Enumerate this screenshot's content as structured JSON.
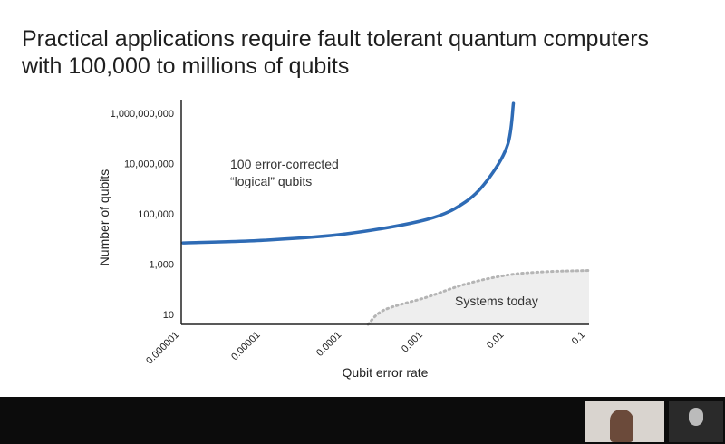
{
  "chart_data": {
    "type": "line",
    "title": "Practical applications require fault tolerant quantum computers with 100,000 to millions of qubits",
    "x_label": "Qubit error rate",
    "y_label": "Number of qubits",
    "xscale": "log",
    "yscale": "log",
    "xlim": [
      1e-06,
      0.1
    ],
    "xticks": [
      1e-06,
      1e-05,
      0.0001,
      0.001,
      0.01,
      0.1
    ],
    "ylim": [
      4,
      3000000000
    ],
    "yticks": [
      10,
      {
        "value": 1000,
        "label": "1,000"
      },
      {
        "value": 100000,
        "label": "100,000"
      },
      {
        "value": 10000000,
        "label": "10,000,000"
      },
      {
        "value": 1000000000,
        "label": "1,000,000,000"
      }
    ],
    "series": [
      {
        "name": "100 error-corrected “logical” qubits",
        "color": "#2e6bb5",
        "fill": "none",
        "dash": false,
        "x": [
          1e-06,
          1e-05,
          0.0001,
          0.001,
          0.003,
          0.006,
          0.01,
          0.0117
        ],
        "values": [
          7000,
          9000,
          16000,
          60000,
          300000,
          3000000,
          60000000,
          2500000000
        ]
      },
      {
        "name": "Systems today",
        "color": "#b5b5b5",
        "fill": "#eeeeee",
        "dash": true,
        "x": [
          0.00019,
          0.0003,
          0.001,
          0.003,
          0.01,
          0.03,
          0.1
        ],
        "values": [
          4,
          15,
          48,
          160,
          370,
          500,
          560
        ]
      }
    ]
  }
}
